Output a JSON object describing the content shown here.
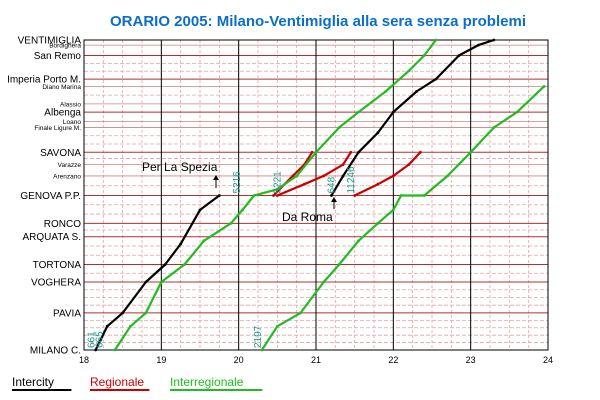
{
  "chart_data": {
    "type": "line",
    "title": "ORARIO 2005: Milano-Ventimiglia alla sera senza problemi",
    "xlim": [
      18,
      24
    ],
    "x_ticks": [
      "18",
      "19",
      "20",
      "21",
      "22",
      "23",
      "24"
    ],
    "stations": [
      {
        "name": "VENTIMIGLIA",
        "km": 0,
        "big": true
      },
      {
        "name": "Bordighera",
        "km": 5,
        "big": false
      },
      {
        "name": "San Remo",
        "km": 15,
        "big": true
      },
      {
        "name": "Imperia Porto M.",
        "km": 38,
        "big": true
      },
      {
        "name": "Diano Marina",
        "km": 45,
        "big": false
      },
      {
        "name": "Alassio",
        "km": 62,
        "big": false
      },
      {
        "name": "Albenga",
        "km": 70,
        "big": true
      },
      {
        "name": "Loano",
        "km": 79,
        "big": false
      },
      {
        "name": "Finale Ligure M.",
        "km": 85,
        "big": false
      },
      {
        "name": "SAVONA",
        "km": 109,
        "big": true
      },
      {
        "name": "Varazze",
        "km": 121,
        "big": false
      },
      {
        "name": "Arenzano",
        "km": 132,
        "big": false
      },
      {
        "name": "GENOVA P.P.",
        "km": 151,
        "big": true
      },
      {
        "name": "RONCO",
        "km": 178,
        "big": true
      },
      {
        "name": "ARQUATA S.",
        "km": 191,
        "big": true
      },
      {
        "name": "TORTONA",
        "km": 218,
        "big": true
      },
      {
        "name": "VOGHERA",
        "km": 235,
        "big": true
      },
      {
        "name": "PAVIA",
        "km": 265,
        "big": true
      },
      {
        "name": "MILANO C.",
        "km": 301,
        "big": true
      }
    ],
    "series": [
      {
        "name": "Intercity",
        "color": "#000000",
        "points": [
          [
            18.15,
            301
          ],
          [
            18.3,
            278
          ],
          [
            18.5,
            265
          ],
          [
            18.8,
            235
          ],
          [
            19.05,
            218
          ],
          [
            19.25,
            198
          ],
          [
            19.5,
            165
          ],
          [
            19.75,
            151
          ]
        ]
      },
      {
        "name": "Intercity",
        "color": "#000000",
        "points": [
          [
            21.2,
            151
          ],
          [
            21.35,
            132
          ],
          [
            21.55,
            109
          ],
          [
            21.8,
            90
          ],
          [
            22.0,
            70
          ],
          [
            22.3,
            50
          ],
          [
            22.55,
            38
          ],
          [
            22.85,
            15
          ],
          [
            23.1,
            5
          ],
          [
            23.3,
            0
          ]
        ]
      },
      {
        "name": "Regionale",
        "color": "#cc0000",
        "points": [
          [
            20.45,
            151
          ],
          [
            20.7,
            132
          ],
          [
            20.85,
            121
          ],
          [
            20.95,
            109
          ]
        ]
      },
      {
        "name": "Regionale",
        "color": "#cc0000",
        "points": [
          [
            20.5,
            151
          ],
          [
            20.85,
            140
          ],
          [
            21.1,
            132
          ],
          [
            21.35,
            121
          ],
          [
            21.45,
            109
          ]
        ]
      },
      {
        "name": "Regionale",
        "color": "#cc0000",
        "points": [
          [
            21.5,
            151
          ],
          [
            21.8,
            140
          ],
          [
            22.0,
            132
          ],
          [
            22.2,
            121
          ],
          [
            22.35,
            109
          ]
        ]
      },
      {
        "name": "Interregionale",
        "color": "#22bb22",
        "points": [
          [
            18.4,
            301
          ],
          [
            18.6,
            278
          ],
          [
            18.8,
            265
          ],
          [
            19.0,
            235
          ],
          [
            19.3,
            218
          ],
          [
            19.55,
            195
          ],
          [
            19.9,
            178
          ],
          [
            20.05,
            165
          ],
          [
            20.2,
            151
          ],
          [
            20.5,
            145
          ],
          [
            20.75,
            132
          ],
          [
            21.0,
            109
          ],
          [
            21.3,
            85
          ],
          [
            21.55,
            70
          ],
          [
            21.9,
            50
          ],
          [
            22.2,
            30
          ],
          [
            22.4,
            15
          ],
          [
            22.55,
            0
          ]
        ]
      },
      {
        "name": "Interregionale",
        "color": "#22bb22",
        "points": [
          [
            20.3,
            301
          ],
          [
            20.5,
            278
          ],
          [
            20.8,
            265
          ],
          [
            21.1,
            235
          ],
          [
            21.3,
            218
          ],
          [
            21.55,
            195
          ],
          [
            21.8,
            178
          ],
          [
            22.0,
            165
          ],
          [
            22.1,
            151
          ],
          [
            22.4,
            151
          ],
          [
            22.7,
            132
          ],
          [
            23.0,
            109
          ],
          [
            23.3,
            85
          ],
          [
            23.6,
            70
          ],
          [
            23.95,
            45
          ]
        ]
      }
    ],
    "train_numbers": [
      {
        "label": "661",
        "x": 18.1
      },
      {
        "label": "665",
        "x": 18.2
      },
      {
        "label": "2197",
        "x": 20.25
      },
      {
        "label": "5216",
        "x": 19.98
      },
      {
        "label": "5221",
        "x": 20.5
      },
      {
        "label": "648",
        "x": 21.2
      },
      {
        "label": "11246",
        "x": 21.45
      }
    ],
    "annotations": [
      {
        "text": "Per La Spezia",
        "arrow": "up"
      },
      {
        "text": "Da Roma",
        "arrow": "up"
      }
    ],
    "legend": [
      {
        "name": "Intercity",
        "color": "#000000"
      },
      {
        "name": "Regionale",
        "color": "#cc0000"
      },
      {
        "name": "Interregionale",
        "color": "#22bb22"
      }
    ],
    "grid": true,
    "legend_position": "bottom"
  }
}
